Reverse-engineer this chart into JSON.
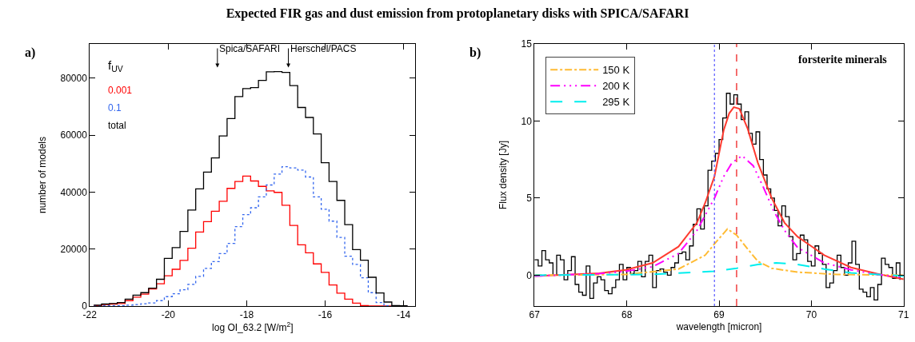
{
  "chart_data": [
    {
      "type": "histogram",
      "title": "Expected FIR gas and dust emission from protoplanetary disks with SPICA/SAFARI",
      "xlabel": "log OI_63.2 [W/m$^{2}$]",
      "ylabel": "number of models",
      "legend_title": "f$_{UV}$",
      "legend": "top left",
      "bins": [
        -21.9,
        -21.7,
        -21.5,
        -21.3,
        -21.1,
        -20.9,
        -20.7,
        -20.5,
        -20.3,
        -20.1,
        -19.9,
        -19.7,
        -19.5,
        -19.3,
        -19.1,
        -18.9,
        -18.7,
        -18.5,
        -18.3,
        -18.1,
        -17.9,
        -17.7,
        -17.5,
        -17.3,
        -17.1,
        -16.9,
        -16.7,
        -16.5,
        -16.3,
        -16.1,
        -15.9,
        -15.7,
        -15.5,
        -15.3,
        -15.1,
        -14.9,
        -14.7,
        -14.5,
        -14.3,
        -14.1,
        -13.9
      ],
      "series": [
        {
          "name": "0.001",
          "color": "#ff0000",
          "line_style": "solid",
          "values": [
            200,
            500,
            700,
            900,
            1900,
            3100,
            4200,
            6000,
            7800,
            10600,
            12900,
            16000,
            20300,
            26000,
            29600,
            33300,
            36800,
            41300,
            43700,
            45600,
            43900,
            42000,
            40400,
            39900,
            35400,
            28300,
            21500,
            18700,
            14800,
            11800,
            7400,
            4500,
            2400,
            1000,
            200,
            0,
            0,
            0,
            0,
            0
          ]
        },
        {
          "name": "0.1",
          "color": "#3366ee",
          "line_style": "dotted",
          "values": [
            0,
            100,
            100,
            100,
            300,
            500,
            800,
            1100,
            1900,
            3300,
            4300,
            5700,
            7600,
            10400,
            13200,
            15600,
            18400,
            22000,
            27900,
            32100,
            34500,
            38300,
            42500,
            46300,
            48900,
            48500,
            47700,
            45300,
            38300,
            34000,
            29800,
            24100,
            17500,
            14600,
            9900,
            4700,
            1200,
            100,
            0,
            0
          ]
        },
        {
          "name": "total",
          "color": "#000000",
          "line_style": "solid",
          "values": [
            300,
            700,
            900,
            1200,
            2400,
            3800,
            4700,
            6300,
            9400,
            16700,
            20500,
            26200,
            33700,
            41100,
            47000,
            52000,
            59700,
            65800,
            73500,
            76300,
            76700,
            79200,
            82200,
            82300,
            82000,
            77400,
            69700,
            66200,
            60400,
            50300,
            43700,
            37100,
            28600,
            19800,
            16100,
            10100,
            4600,
            1400,
            200,
            100
          ]
        }
      ],
      "xlim": [
        -22,
        -13.7
      ],
      "xticks": [
        -22,
        -20,
        -18,
        -16,
        -14
      ],
      "ylim": [
        0,
        92000
      ],
      "yticks": [
        0,
        20000,
        40000,
        60000,
        80000
      ],
      "annotations": [
        "a)",
        "Spica/SAFARI",
        "Herschel/PACS"
      ]
    },
    {
      "type": "line",
      "xlabel": "wavelength [micron]",
      "ylabel": "Flux density [Jy]",
      "legend": "top left",
      "xlim": [
        67,
        71
      ],
      "xticks": [
        67,
        68,
        69,
        70,
        71
      ],
      "ylim": [
        -2,
        15
      ],
      "yticks": [
        0,
        5,
        10,
        15
      ],
      "ref_lines": [
        {
          "axis": "x",
          "value": 68.95,
          "color": "#6666ff",
          "line_style": "dotted"
        },
        {
          "axis": "x",
          "value": 69.19,
          "color": "#ee2222",
          "line_style": "dashed"
        }
      ],
      "annotations": [
        "b)",
        "forsterite minerals"
      ],
      "series": [
        {
          "type": "step",
          "color": "#000000",
          "line_style": "solid",
          "x": [
            67.0,
            67.04,
            67.08,
            67.12,
            67.16,
            67.2,
            67.24,
            67.28,
            67.32,
            67.36,
            67.4,
            67.44,
            67.48,
            67.52,
            67.56,
            67.6,
            67.64,
            67.68,
            67.72,
            67.76,
            67.8,
            67.84,
            67.88,
            67.92,
            67.96,
            68.0,
            68.04,
            68.08,
            68.12,
            68.16,
            68.2,
            68.24,
            68.28,
            68.32,
            68.36,
            68.4,
            68.44,
            68.48,
            68.52,
            68.56,
            68.6,
            68.64,
            68.68,
            68.72,
            68.76,
            68.8,
            68.84,
            68.88,
            68.92,
            68.96,
            69.0,
            69.04,
            69.08,
            69.12,
            69.16,
            69.2,
            69.24,
            69.28,
            69.32,
            69.36,
            69.4,
            69.44,
            69.48,
            69.52,
            69.56,
            69.6,
            69.64,
            69.68,
            69.72,
            69.76,
            69.8,
            69.84,
            69.88,
            69.92,
            69.96,
            70.0,
            70.04,
            70.08,
            70.12,
            70.16,
            70.2,
            70.24,
            70.28,
            70.32,
            70.36,
            70.4,
            70.44,
            70.48,
            70.52,
            70.56,
            70.6,
            70.64,
            70.68,
            70.72,
            70.76,
            70.8,
            70.84,
            70.88,
            70.92,
            70.96
          ],
          "values": [
            1.0,
            0.6,
            1.6,
            1.0,
            0.8,
            0.0,
            1.3,
            1.0,
            -0.3,
            0.3,
            1.2,
            -0.6,
            -1.1,
            -1.3,
            0.6,
            -1.5,
            -0.5,
            -0.1,
            -0.3,
            -1.0,
            -1.2,
            -0.8,
            -0.3,
            0.7,
            -0.3,
            0.5,
            0.1,
            0.3,
            0.9,
            -0.1,
            0.9,
            1.3,
            -0.8,
            0.3,
            0.4,
            0.2,
            0.0,
            0.5,
            0.8,
            1.4,
            1.5,
            1.0,
            1.9,
            3.3,
            4.3,
            3.0,
            4.5,
            6.8,
            7.4,
            7.9,
            8.8,
            10.2,
            11.8,
            11.1,
            11.7,
            11.1,
            10.1,
            10.6,
            9.2,
            8.5,
            9.3,
            7.5,
            6.5,
            5.6,
            5.0,
            4.2,
            3.2,
            4.5,
            3.8,
            2.5,
            1.0,
            1.4,
            2.6,
            2.3,
            0.9,
            0.6,
            1.9,
            1.4,
            0.7,
            -0.8,
            -0.5,
            0.3,
            1.3,
            0.5,
            0.0,
            0.8,
            2.2,
            0.7,
            -0.9,
            -1.1,
            -1.4,
            -0.8,
            -1.6,
            -0.6,
            1.1,
            0.7,
            0.5,
            -0.2,
            0.8,
            -0.3
          ]
        },
        {
          "type": "line",
          "color": "#ff3b30",
          "line_style": "solid",
          "x": [
            67.0,
            67.7,
            67.99,
            68.28,
            68.56,
            68.76,
            68.85,
            68.95,
            69.05,
            69.11,
            69.16,
            69.22,
            69.31,
            69.42,
            69.57,
            69.71,
            69.85,
            70.14,
            70.43,
            70.71,
            71.0
          ],
          "values": [
            -0.05,
            0.12,
            0.35,
            0.8,
            1.85,
            3.4,
            4.7,
            6.4,
            9.4,
            10.5,
            10.9,
            10.8,
            9.5,
            7.3,
            5.0,
            3.4,
            2.5,
            1.3,
            0.5,
            0.1,
            -0.26
          ]
        },
        {
          "type": "line",
          "name": "150 K",
          "color": "#ffbb33",
          "line_style": "dashdot",
          "x": [
            67.0,
            67.99,
            68.56,
            68.85,
            68.96,
            69.09,
            69.19,
            69.31,
            69.42,
            69.57,
            69.85,
            70.28,
            71.0
          ],
          "values": [
            0,
            0.05,
            0.4,
            1.3,
            2.1,
            3.0,
            2.6,
            1.7,
            0.9,
            0.45,
            0.2,
            0.05,
            0
          ]
        },
        {
          "type": "line",
          "name": "200 K",
          "color": "#ff00ff",
          "line_style": "dashdotdot",
          "x": [
            67.0,
            67.7,
            67.99,
            68.28,
            68.56,
            68.76,
            68.95,
            69.05,
            69.14,
            69.25,
            69.37,
            69.48,
            69.59,
            69.71,
            69.85,
            70.14,
            70.43,
            70.71,
            71.0
          ],
          "values": [
            -0.05,
            0.1,
            0.25,
            0.55,
            1.4,
            2.9,
            5.0,
            6.4,
            7.3,
            7.75,
            7.1,
            5.7,
            4.2,
            2.9,
            1.8,
            0.8,
            0.35,
            0.05,
            -0.15
          ]
        },
        {
          "type": "line",
          "name": "295 K",
          "color": "#00eeee",
          "line_style": "dashed",
          "x": [
            67.0,
            68.28,
            68.94,
            69.19,
            69.42,
            69.62,
            69.85,
            70.14,
            70.43,
            71.0
          ],
          "values": [
            0,
            0.05,
            0.25,
            0.45,
            0.7,
            0.8,
            0.7,
            0.4,
            0.15,
            -0.05
          ]
        }
      ]
    }
  ]
}
